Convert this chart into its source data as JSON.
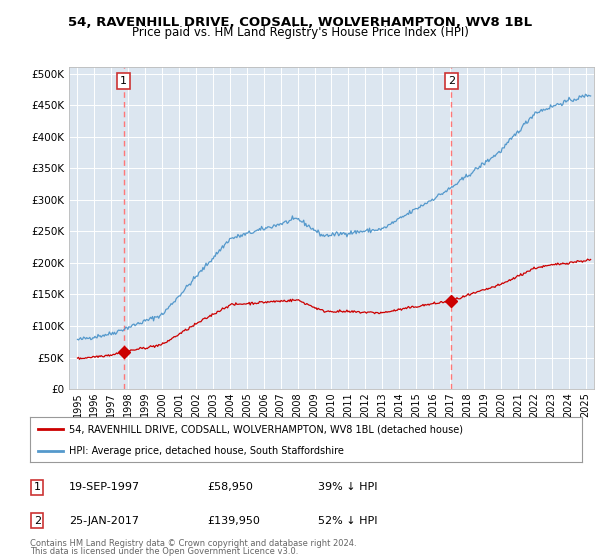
{
  "title1": "54, RAVENHILL DRIVE, CODSALL, WOLVERHAMPTON, WV8 1BL",
  "title2": "Price paid vs. HM Land Registry's House Price Index (HPI)",
  "plot_bg_color": "#dce6f0",
  "line1_color": "#cc0000",
  "line2_color": "#5599cc",
  "marker_color": "#cc0000",
  "dashed_color": "#ff7777",
  "ylim": [
    0,
    510000
  ],
  "yticks": [
    0,
    50000,
    100000,
    150000,
    200000,
    250000,
    300000,
    350000,
    400000,
    450000,
    500000
  ],
  "ytick_labels": [
    "£0",
    "£50K",
    "£100K",
    "£150K",
    "£200K",
    "£250K",
    "£300K",
    "£350K",
    "£400K",
    "£450K",
    "£500K"
  ],
  "sale1_date": 1997.72,
  "sale1_price": 58950,
  "sale2_date": 2017.07,
  "sale2_price": 139950,
  "legend_line1": "54, RAVENHILL DRIVE, CODSALL, WOLVERHAMPTON, WV8 1BL (detached house)",
  "legend_line2": "HPI: Average price, detached house, South Staffordshire",
  "footnote1": "Contains HM Land Registry data © Crown copyright and database right 2024.",
  "footnote2": "This data is licensed under the Open Government Licence v3.0.",
  "ann1_date": "19-SEP-1997",
  "ann1_price": "£58,950",
  "ann1_hpi": "39% ↓ HPI",
  "ann2_date": "25-JAN-2017",
  "ann2_price": "£139,950",
  "ann2_hpi": "52% ↓ HPI",
  "xmin": 1994.5,
  "xmax": 2025.5
}
